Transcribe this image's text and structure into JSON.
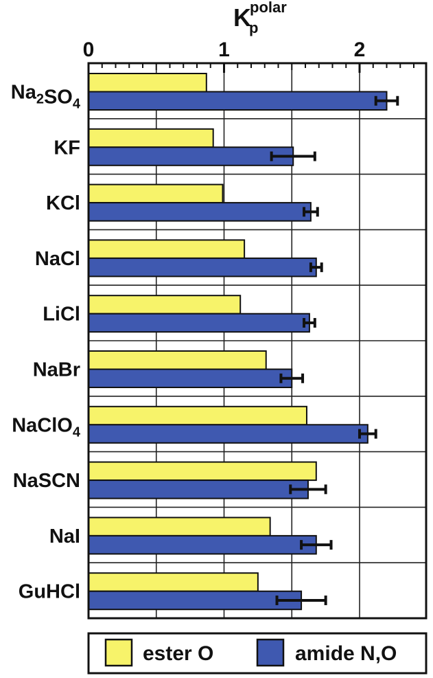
{
  "chart_data": {
    "type": "bar",
    "orientation": "horizontal",
    "title": {
      "main": "K",
      "sup": "polar",
      "sub": "p"
    },
    "xlim": [
      0,
      2.4
    ],
    "xticks": [
      0,
      1,
      2
    ],
    "xtick_labels": [
      "0",
      "1",
      "2"
    ],
    "grid": true,
    "legend_position": "bottom",
    "categories": [
      {
        "base": "Na",
        "sub1": "2",
        "mid": "SO",
        "sub2": "4"
      },
      {
        "base": "KF"
      },
      {
        "base": "KCl"
      },
      {
        "base": "NaCl"
      },
      {
        "base": "LiCl"
      },
      {
        "base": "NaBr"
      },
      {
        "base": "NaClO",
        "sub1": "4"
      },
      {
        "base": "NaSCN"
      },
      {
        "base": "NaI"
      },
      {
        "base": "GuHCl"
      }
    ],
    "series": [
      {
        "name": "ester O",
        "color": "#f7f36a",
        "values": [
          0.87,
          0.92,
          0.99,
          1.15,
          1.12,
          1.31,
          1.61,
          1.68,
          1.34,
          1.25
        ]
      },
      {
        "name": "amide N,O",
        "color": "#3f59b0",
        "values": [
          2.2,
          1.51,
          1.64,
          1.68,
          1.63,
          1.5,
          2.06,
          1.62,
          1.68,
          1.57
        ],
        "error": [
          0.08,
          0.16,
          0.05,
          0.04,
          0.04,
          0.08,
          0.06,
          0.13,
          0.11,
          0.18
        ]
      }
    ]
  }
}
